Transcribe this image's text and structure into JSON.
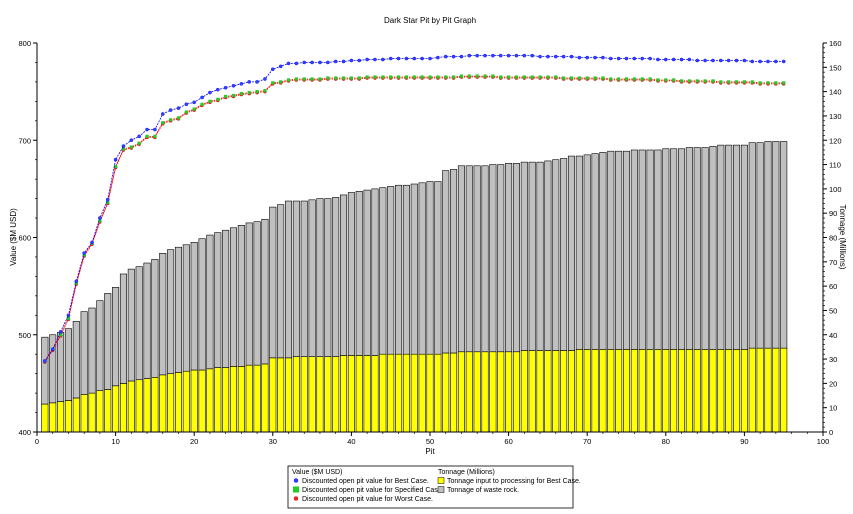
{
  "chart_data": {
    "type": "bar",
    "title": "Dark Star Pit by Pit Graph",
    "xlabel": "Pit",
    "ylabel": "Value ($M USD)",
    "y2label": "Tonnage (Millions)",
    "xlim": [
      0,
      100
    ],
    "ylim": [
      400,
      800
    ],
    "y2lim": [
      0,
      160
    ],
    "x_ticks": [
      0,
      10,
      20,
      30,
      40,
      50,
      60,
      70,
      80,
      90,
      100
    ],
    "y_ticks": [
      400,
      500,
      600,
      700,
      800
    ],
    "y2_ticks": [
      0,
      10,
      20,
      30,
      40,
      50,
      60,
      70,
      80,
      90,
      100,
      110,
      120,
      130,
      140,
      150,
      160
    ],
    "pits": [
      1,
      2,
      3,
      4,
      5,
      6,
      7,
      8,
      9,
      10,
      11,
      12,
      13,
      14,
      15,
      16,
      17,
      18,
      19,
      20,
      21,
      22,
      23,
      24,
      25,
      26,
      27,
      28,
      29,
      30,
      31,
      32,
      33,
      34,
      35,
      36,
      37,
      38,
      39,
      40,
      41,
      42,
      43,
      44,
      45,
      46,
      47,
      48,
      49,
      50,
      51,
      52,
      53,
      54,
      55,
      56,
      57,
      58,
      59,
      60,
      61,
      62,
      63,
      64,
      65,
      66,
      67,
      68,
      69,
      70,
      71,
      72,
      73,
      74,
      75,
      76,
      77,
      78,
      79,
      80,
      81,
      82,
      83,
      84,
      85,
      86,
      87,
      88,
      89,
      90,
      91,
      92,
      93,
      94,
      95
    ],
    "stacked_bars": [
      {
        "name": "Tonnage input to processing for Best Case.",
        "axis": "right",
        "color": "#ffff00",
        "values": [
          11.5,
          12,
          12.5,
          13,
          14,
          15.5,
          16,
          17,
          17.5,
          19,
          20,
          21,
          21.5,
          22,
          22.5,
          23.5,
          24,
          24.5,
          25,
          25.5,
          25.5,
          26,
          26.5,
          26.5,
          27,
          27,
          27.5,
          27.5,
          28,
          30.5,
          30.5,
          30.5,
          31,
          31,
          31,
          31,
          31,
          31,
          31.5,
          31.5,
          31.5,
          31.5,
          31.5,
          32,
          32,
          32,
          32,
          32,
          32,
          32,
          32,
          32.5,
          32.5,
          33,
          33,
          33,
          33,
          33,
          33,
          33,
          33,
          33.5,
          33.5,
          33.5,
          33.5,
          33.5,
          33.5,
          33.5,
          34,
          34,
          34,
          34,
          34,
          34,
          34,
          34,
          34,
          34,
          34,
          34,
          34,
          34,
          34,
          34,
          34,
          34,
          34,
          34,
          34,
          34,
          34.5,
          34.5,
          34.5,
          34.5,
          34.5
        ]
      },
      {
        "name": "Tonnage of waste rock.",
        "axis": "right",
        "color": "#c0c0c0",
        "values": [
          27.5,
          28,
          28.5,
          29.5,
          31.5,
          34,
          35,
          37,
          39.5,
          40.5,
          45,
          46,
          46.5,
          47.5,
          48.5,
          50,
          51,
          51.5,
          52,
          52.5,
          54,
          55,
          55.5,
          56.5,
          57,
          58,
          58.5,
          59,
          59.5,
          62,
          63,
          64.5,
          64,
          64,
          64.5,
          65,
          65,
          65.5,
          66,
          67,
          67.5,
          68,
          68.5,
          68.5,
          69,
          69.5,
          69.5,
          70,
          70.5,
          71,
          71,
          75,
          75.5,
          76.5,
          76.5,
          76.5,
          76.5,
          77,
          77,
          77.5,
          77.5,
          77.5,
          77.5,
          77.5,
          78,
          78.5,
          79,
          80,
          79.5,
          80,
          80.5,
          81,
          81.5,
          81.5,
          81.5,
          82,
          82,
          82,
          82,
          82.5,
          82.5,
          82.5,
          83,
          83,
          83,
          83.5,
          84,
          84,
          84,
          84,
          84.5,
          84.5,
          85,
          85,
          85
        ]
      }
    ],
    "series": [
      {
        "name": "Discounted open pit value for Best Case.",
        "axis": "left",
        "color": "#0000ff",
        "marker": "#3344ff",
        "values": [
          473,
          485,
          503,
          520,
          555,
          584,
          595,
          620,
          639,
          680,
          694,
          700,
          704,
          711,
          711,
          727,
          731,
          733,
          737,
          739,
          744,
          749,
          752,
          754,
          756,
          758,
          760,
          760,
          763,
          773,
          776,
          779,
          779,
          780,
          780,
          780,
          780,
          781,
          781,
          782,
          782,
          783,
          783,
          783,
          784,
          784,
          784,
          784,
          784,
          784,
          785,
          786,
          786,
          786,
          787,
          787,
          787,
          787,
          787,
          787,
          787,
          787,
          787,
          786,
          786,
          786,
          786,
          786,
          785,
          785,
          785,
          785,
          784,
          784,
          784,
          784,
          784,
          784,
          783,
          783,
          783,
          783,
          783,
          782,
          782,
          782,
          782,
          782,
          782,
          782,
          781,
          781,
          781,
          781,
          781
        ]
      },
      {
        "name": "Discounted open pit value for Specified Case.",
        "axis": "left",
        "color": "#ff0000",
        "marker": "#22cc22",
        "values": [
          473,
          485,
          500,
          517,
          553,
          582,
          594,
          617,
          636,
          673,
          691,
          693,
          697,
          704,
          704,
          718,
          721,
          723,
          729,
          732,
          737,
          740,
          742,
          745,
          746,
          748,
          749,
          750,
          751,
          759,
          760,
          762,
          763,
          763,
          763,
          763,
          764,
          764,
          764,
          764,
          764,
          765,
          765,
          765,
          765,
          765,
          765,
          765,
          765,
          765,
          765,
          765,
          765,
          766,
          766,
          766,
          766,
          766,
          765,
          765,
          765,
          765,
          765,
          765,
          765,
          765,
          764,
          764,
          764,
          764,
          764,
          764,
          763,
          763,
          763,
          763,
          763,
          763,
          762,
          762,
          762,
          761,
          761,
          761,
          761,
          761,
          760,
          760,
          760,
          760,
          760,
          759,
          759,
          759,
          759
        ]
      },
      {
        "name": "Discounted open pit value for Worst Case.",
        "axis": "left",
        "color": "#ff0000",
        "marker": "#ff2222",
        "values": [
          472,
          484,
          499,
          516,
          552,
          581,
          593,
          616,
          635,
          672,
          690,
          692,
          696,
          703,
          703,
          717,
          720,
          722,
          728,
          731,
          736,
          739,
          741,
          744,
          745,
          747,
          748,
          749,
          750,
          758,
          759,
          761,
          762,
          762,
          762,
          762,
          763,
          763,
          763,
          763,
          763,
          764,
          764,
          764,
          764,
          764,
          764,
          764,
          764,
          764,
          764,
          764,
          764,
          765,
          765,
          765,
          765,
          765,
          764,
          764,
          764,
          764,
          764,
          764,
          764,
          764,
          763,
          763,
          763,
          763,
          763,
          763,
          762,
          762,
          762,
          762,
          762,
          762,
          761,
          761,
          761,
          760,
          760,
          760,
          760,
          760,
          759,
          759,
          759,
          759,
          759,
          758,
          758,
          758,
          758
        ]
      }
    ],
    "legend": {
      "position": "bottom-center",
      "value_title": "Value ($M USD)",
      "tonnage_title": "Tonnage (Millions)"
    }
  }
}
